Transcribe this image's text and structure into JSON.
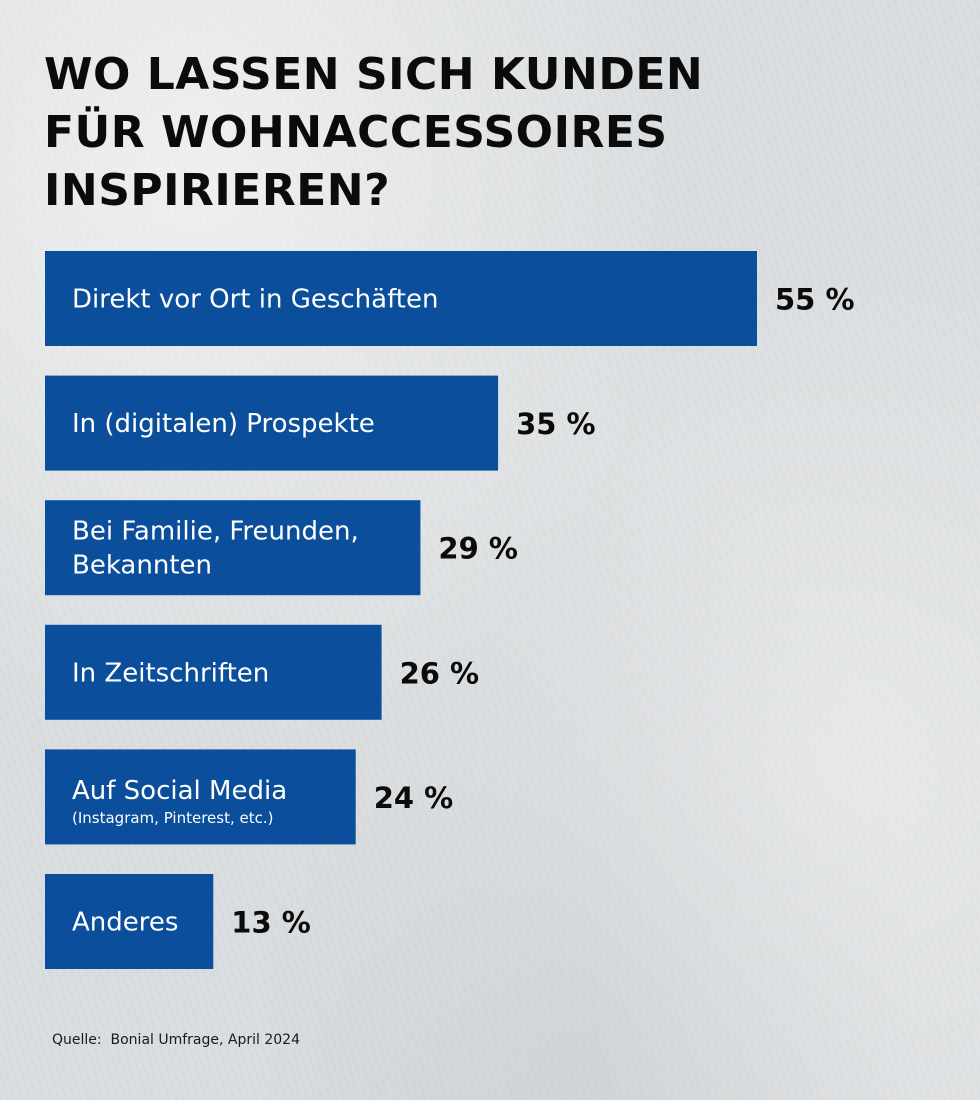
{
  "chart_data": {
    "type": "bar",
    "orientation": "horizontal",
    "title": "WO LASSEN SICH KUNDEN\nFÜR WOHNACCESSOIRES\nINSPIRIEREN?",
    "unit": "%",
    "categories": [
      {
        "label": [
          "Direkt vor Ort in Geschäften"
        ],
        "sublabel": "",
        "value": 55,
        "value_label": "55 %"
      },
      {
        "label": [
          "In (digitalen) Prospekte"
        ],
        "sublabel": "",
        "value": 35,
        "value_label": "35 %"
      },
      {
        "label": [
          "Bei Familie, Freunden,",
          "Bekannten"
        ],
        "sublabel": "",
        "value": 29,
        "value_label": "29 %"
      },
      {
        "label": [
          "In Zeitschriften"
        ],
        "sublabel": "",
        "value": 26,
        "value_label": "26 %"
      },
      {
        "label": [
          "Auf Social Media"
        ],
        "sublabel": "(Instagram, Pinterest, etc.)",
        "value": 24,
        "value_label": "24 %"
      },
      {
        "label": [
          "Anderes"
        ],
        "sublabel": "",
        "value": 13,
        "value_label": "13 %"
      }
    ],
    "xlim": [
      0,
      55
    ],
    "bar_color": "#0b4f9c",
    "legend": "none",
    "grid": false
  },
  "source": "Quelle:  Bonial Umfrage, April 2024"
}
